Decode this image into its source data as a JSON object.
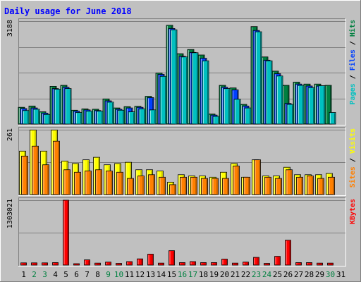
{
  "chart_data": {
    "type": "bar",
    "title": "Daily usage for June 2018",
    "categories": [
      "1",
      "2",
      "3",
      "4",
      "5",
      "6",
      "7",
      "8",
      "9",
      "10",
      "11",
      "12",
      "13",
      "14",
      "15",
      "16",
      "17",
      "18",
      "19",
      "20",
      "21",
      "22",
      "23",
      "24",
      "25",
      "26",
      "27",
      "28",
      "29",
      "30",
      "31"
    ],
    "weekend_days": [
      "2",
      "3",
      "9",
      "10",
      "16",
      "17",
      "23",
      "24",
      "30"
    ],
    "panels": [
      {
        "name": "hits-files-pages",
        "ymax_label": "3188",
        "ymax": 3188,
        "legend": [
          "Pages",
          "Files",
          "Hits"
        ],
        "legend_colors": [
          "#00c0c0",
          "#0040ff",
          "#008040"
        ],
        "series": [
          {
            "name": "Hits",
            "color": "#008040",
            "values": [
              520,
              560,
              380,
              1170,
              1200,
              430,
              470,
              460,
              780,
              500,
              540,
              550,
              860,
              1580,
              3060,
              2180,
              2310,
              2140,
              310,
              1200,
              1120,
              610,
              3020,
              2080,
              1640,
              1200,
              1300,
              1240,
              1240,
              1200,
              0
            ]
          },
          {
            "name": "Files",
            "color": "#0040ff",
            "values": [
              480,
              500,
              340,
              1100,
              1140,
              400,
              440,
              420,
              720,
              460,
              500,
              520,
              820,
              1540,
              2960,
              2100,
              2220,
              2040,
              280,
              1140,
              1060,
              560,
              2900,
              1980,
              1560,
              640,
              1240,
              1180,
              1180,
              0,
              0
            ]
          },
          {
            "name": "Pages",
            "color": "#00c0c0",
            "values": [
              420,
              460,
              300,
              1080,
              1100,
              360,
              400,
              400,
              680,
              430,
              380,
              470,
              440,
              1480,
              2920,
              2080,
              2210,
              1960,
              240,
              1100,
              770,
              500,
              2860,
              1960,
              1490,
              610,
              1200,
              1130,
              1190,
              360,
              0
            ]
          }
        ]
      },
      {
        "name": "visits-sites",
        "ymax_label": "261",
        "ymax": 261,
        "legend": [
          "Sites",
          "Visits"
        ],
        "legend_colors": [
          "#ff8000",
          "#ffff00"
        ],
        "series": [
          {
            "name": "Visits",
            "color": "#ffff00",
            "values": [
              175,
              260,
              175,
              260,
              135,
              125,
              140,
              150,
              120,
              125,
              130,
              100,
              100,
              95,
              50,
              80,
              75,
              75,
              70,
              90,
              125,
              70,
              140,
              75,
              75,
              110,
              80,
              80,
              80,
              85,
              0
            ]
          },
          {
            "name": "Sites",
            "color": "#ff8000",
            "values": [
              155,
              195,
              120,
              215,
              100,
              90,
              95,
              100,
              95,
              90,
              65,
              75,
              80,
              70,
              40,
              70,
              70,
              65,
              65,
              65,
              115,
              70,
              140,
              70,
              65,
              100,
              70,
              75,
              65,
              70,
              0
            ]
          }
        ]
      },
      {
        "name": "kbytes",
        "ymax_label": "1303021",
        "ymax": 1303021,
        "legend": [
          "KBytes"
        ],
        "legend_colors": [
          "#ff0000"
        ],
        "series": [
          {
            "name": "KBytes",
            "color": "#ff0000",
            "values": [
              45000,
              45000,
              45000,
              50000,
              1303021,
              28000,
              105000,
              40000,
              60000,
              35000,
              70000,
              125000,
              220000,
              40000,
              290000,
              50000,
              70000,
              50000,
              50000,
              120000,
              40000,
              60000,
              155000,
              35000,
              175000,
              500000,
              50000,
              50000,
              40000,
              40000,
              0
            ]
          }
        ]
      }
    ]
  }
}
